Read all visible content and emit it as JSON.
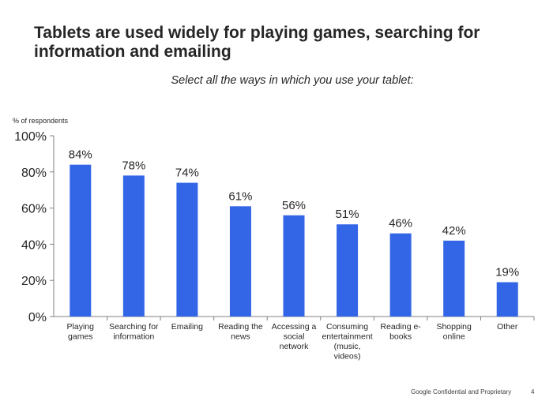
{
  "slide": {
    "title": "Tablets are used widely for playing games, searching for information and emailing",
    "subtitle": "Select all the ways in which you use your tablet:",
    "footer": "Google Confidential and Proprietary",
    "page_number": "4"
  },
  "colors": {
    "bar": "#3366e6",
    "axis": "#808080",
    "text": "#262626"
  },
  "chart_data": {
    "type": "bar",
    "ylabel": "% of respondents",
    "ylim": [
      0,
      100
    ],
    "yticks": [
      "0%",
      "20%",
      "40%",
      "60%",
      "80%",
      "100%"
    ],
    "grid": false,
    "categories": [
      [
        "Playing",
        "games"
      ],
      [
        "Searching for",
        "information"
      ],
      [
        "Emailing"
      ],
      [
        "Reading the",
        "news"
      ],
      [
        "Accessing a",
        "social",
        "network"
      ],
      [
        "Consuming",
        "entertainment",
        "(music,",
        "videos)"
      ],
      [
        "Reading e-",
        "books"
      ],
      [
        "Shopping",
        "online"
      ],
      [
        "Other"
      ]
    ],
    "values": [
      84,
      78,
      74,
      61,
      56,
      51,
      46,
      42,
      19
    ],
    "value_labels": [
      "84%",
      "78%",
      "74%",
      "61%",
      "56%",
      "51%",
      "46%",
      "42%",
      "19%"
    ]
  }
}
